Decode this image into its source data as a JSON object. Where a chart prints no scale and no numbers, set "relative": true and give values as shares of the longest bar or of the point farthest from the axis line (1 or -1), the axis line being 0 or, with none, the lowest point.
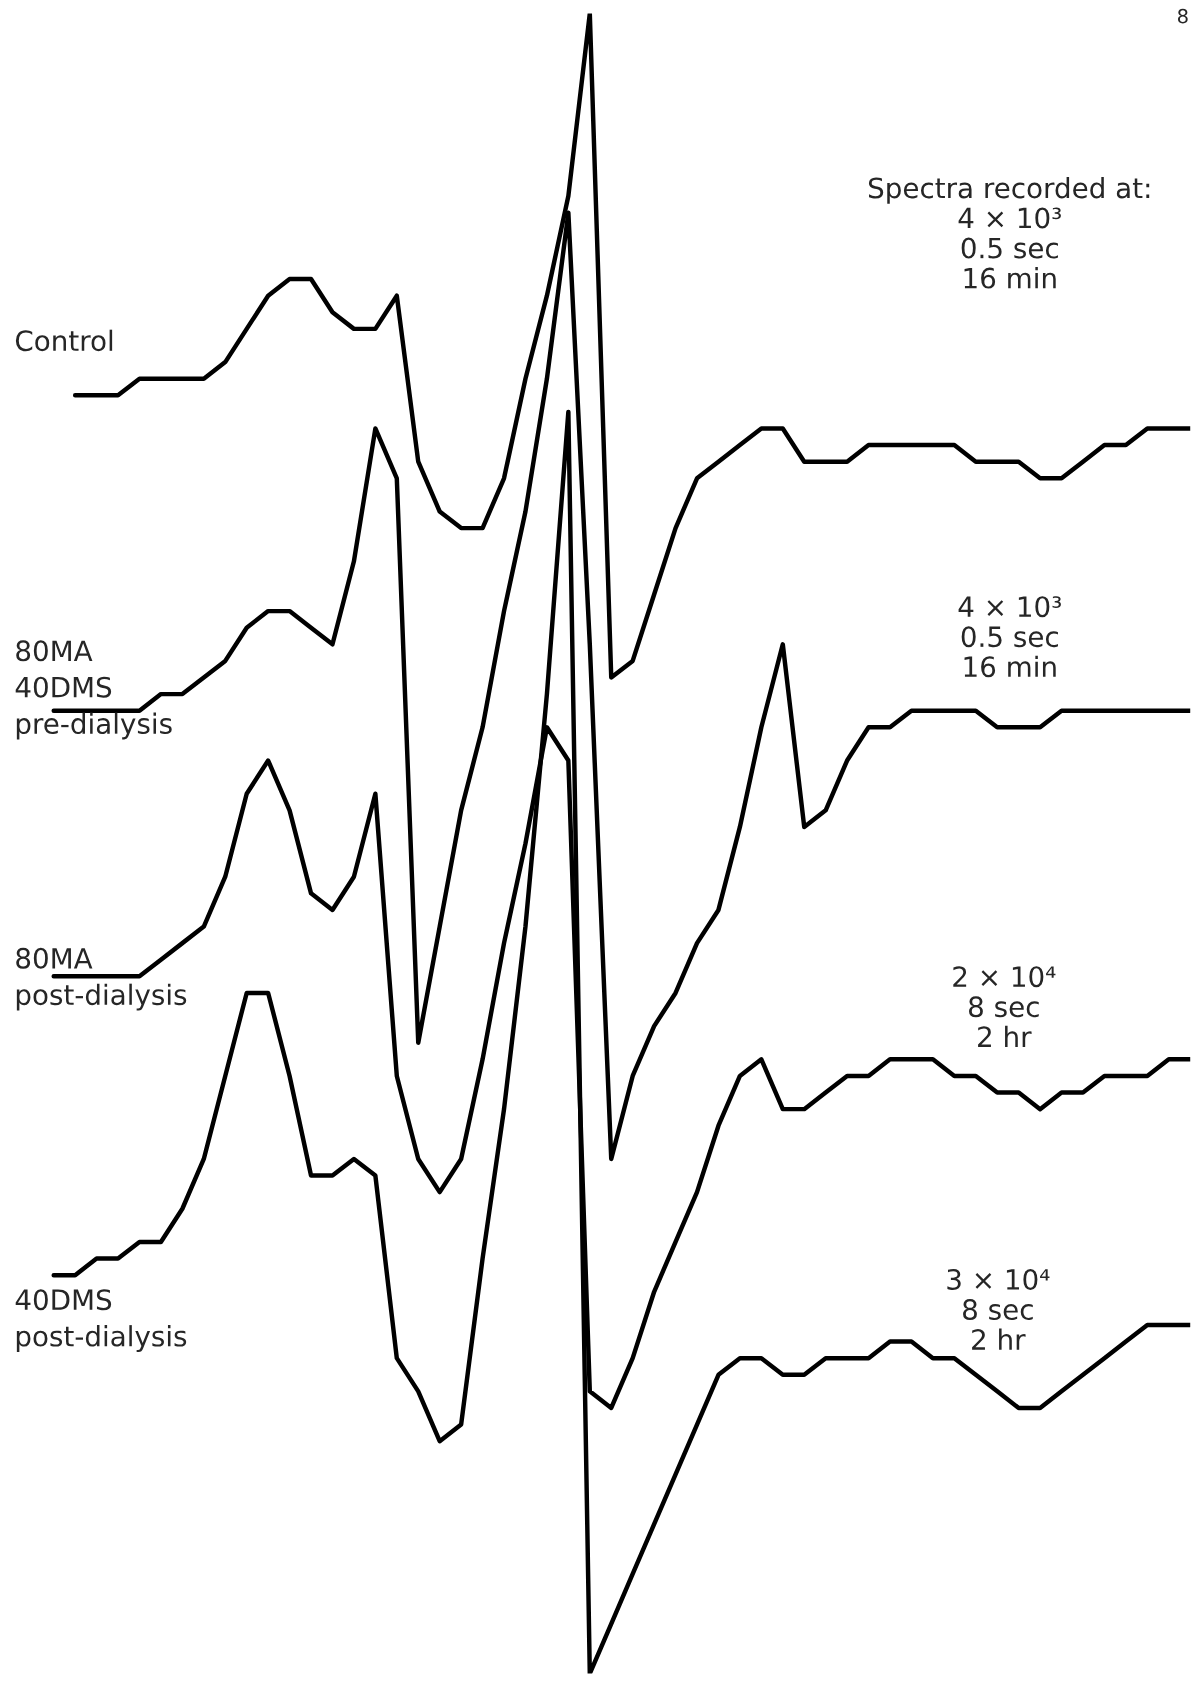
{
  "chart_data": {
    "type": "line",
    "relative": true,
    "legend": false,
    "marker": "none",
    "line_style": "solid",
    "categories": [
      null,
      null,
      null,
      null,
      null,
      null,
      null,
      null,
      null,
      null,
      null,
      null,
      null,
      null,
      null,
      null,
      null,
      null,
      null,
      null,
      null,
      null,
      null,
      null,
      null,
      null,
      null,
      null,
      null,
      null,
      null,
      null,
      null,
      null,
      null,
      null,
      null,
      null,
      null,
      null,
      null,
      null,
      null,
      null,
      null,
      null,
      null,
      null,
      null,
      null,
      null,
      null,
      null,
      null,
      null
    ],
    "series": [
      {
        "name": "Control",
        "color": "#000000",
        "values": [
          null,
          null,
          0.77,
          0.77,
          0.77,
          0.78,
          0.78,
          0.78,
          0.78,
          0.79,
          0.81,
          0.83,
          0.84,
          0.84,
          0.82,
          0.81,
          0.81,
          0.83,
          0.73,
          0.7,
          0.69,
          0.69,
          0.72,
          0.78,
          0.83,
          0.89,
          1.0,
          0.6,
          0.61,
          0.65,
          0.69,
          0.72,
          0.73,
          0.74,
          0.75,
          0.75,
          0.73,
          0.73,
          0.73,
          0.74,
          0.74,
          0.74,
          0.74,
          0.74,
          0.73,
          0.73,
          0.73,
          0.72,
          0.72,
          0.73,
          0.74,
          0.74,
          0.75,
          0.75,
          0.75
        ]
      },
      {
        "name": "80MA\n40DMS\npre-dialysis",
        "color": "#000000",
        "values": [
          null,
          0.58,
          0.58,
          0.58,
          0.58,
          0.58,
          0.59,
          0.59,
          0.6,
          0.61,
          0.63,
          0.64,
          0.64,
          0.63,
          0.62,
          0.67,
          0.75,
          0.72,
          0.38,
          0.45,
          0.52,
          0.57,
          0.64,
          0.7,
          0.78,
          0.88,
          0.62,
          0.31,
          0.36,
          0.39,
          0.41,
          0.44,
          0.46,
          0.51,
          0.57,
          0.62,
          0.51,
          0.52,
          0.55,
          0.57,
          0.57,
          0.58,
          0.58,
          0.58,
          0.58,
          0.57,
          0.57,
          0.57,
          0.58,
          0.58,
          0.58,
          0.58,
          0.58,
          0.58,
          0.58
        ]
      },
      {
        "name": "80MA\npost-dialysis",
        "color": "#000000",
        "values": [
          null,
          0.42,
          0.42,
          0.42,
          0.42,
          0.42,
          0.43,
          0.44,
          0.45,
          0.48,
          0.53,
          0.55,
          0.52,
          0.47,
          0.46,
          0.48,
          0.53,
          0.36,
          0.31,
          0.29,
          0.31,
          0.37,
          0.44,
          0.5,
          0.57,
          0.55,
          0.17,
          0.16,
          0.19,
          0.23,
          0.26,
          0.29,
          0.33,
          0.36,
          0.37,
          0.34,
          0.34,
          0.35,
          0.36,
          0.36,
          0.37,
          0.37,
          0.37,
          0.36,
          0.36,
          0.35,
          0.35,
          0.34,
          0.35,
          0.35,
          0.36,
          0.36,
          0.36,
          0.37,
          0.37
        ]
      },
      {
        "name": "40DMS\npost-dialysis",
        "color": "#000000",
        "values": [
          null,
          0.24,
          0.24,
          0.25,
          0.25,
          0.26,
          0.26,
          0.28,
          0.31,
          0.36,
          0.41,
          0.41,
          0.36,
          0.3,
          0.3,
          0.31,
          0.3,
          0.19,
          0.17,
          0.14,
          0.15,
          0.25,
          0.34,
          0.45,
          0.59,
          0.76,
          0.0,
          0.03,
          0.06,
          0.09,
          0.12,
          0.15,
          0.18,
          0.19,
          0.19,
          0.18,
          0.18,
          0.19,
          0.19,
          0.19,
          0.2,
          0.2,
          0.19,
          0.19,
          0.18,
          0.17,
          0.16,
          0.16,
          0.17,
          0.18,
          0.19,
          0.2,
          0.21,
          0.21,
          0.21
        ]
      }
    ],
    "annotations": [
      "8",
      "Spectra recorded at:\n4 × 10³\n0.5 sec\n16 min",
      "4 × 10³\n0.5 sec\n16 min",
      "2 × 10⁴\n8 sec\n2 hr",
      "3 × 10⁴\n8 sec\n2 hr"
    ]
  }
}
